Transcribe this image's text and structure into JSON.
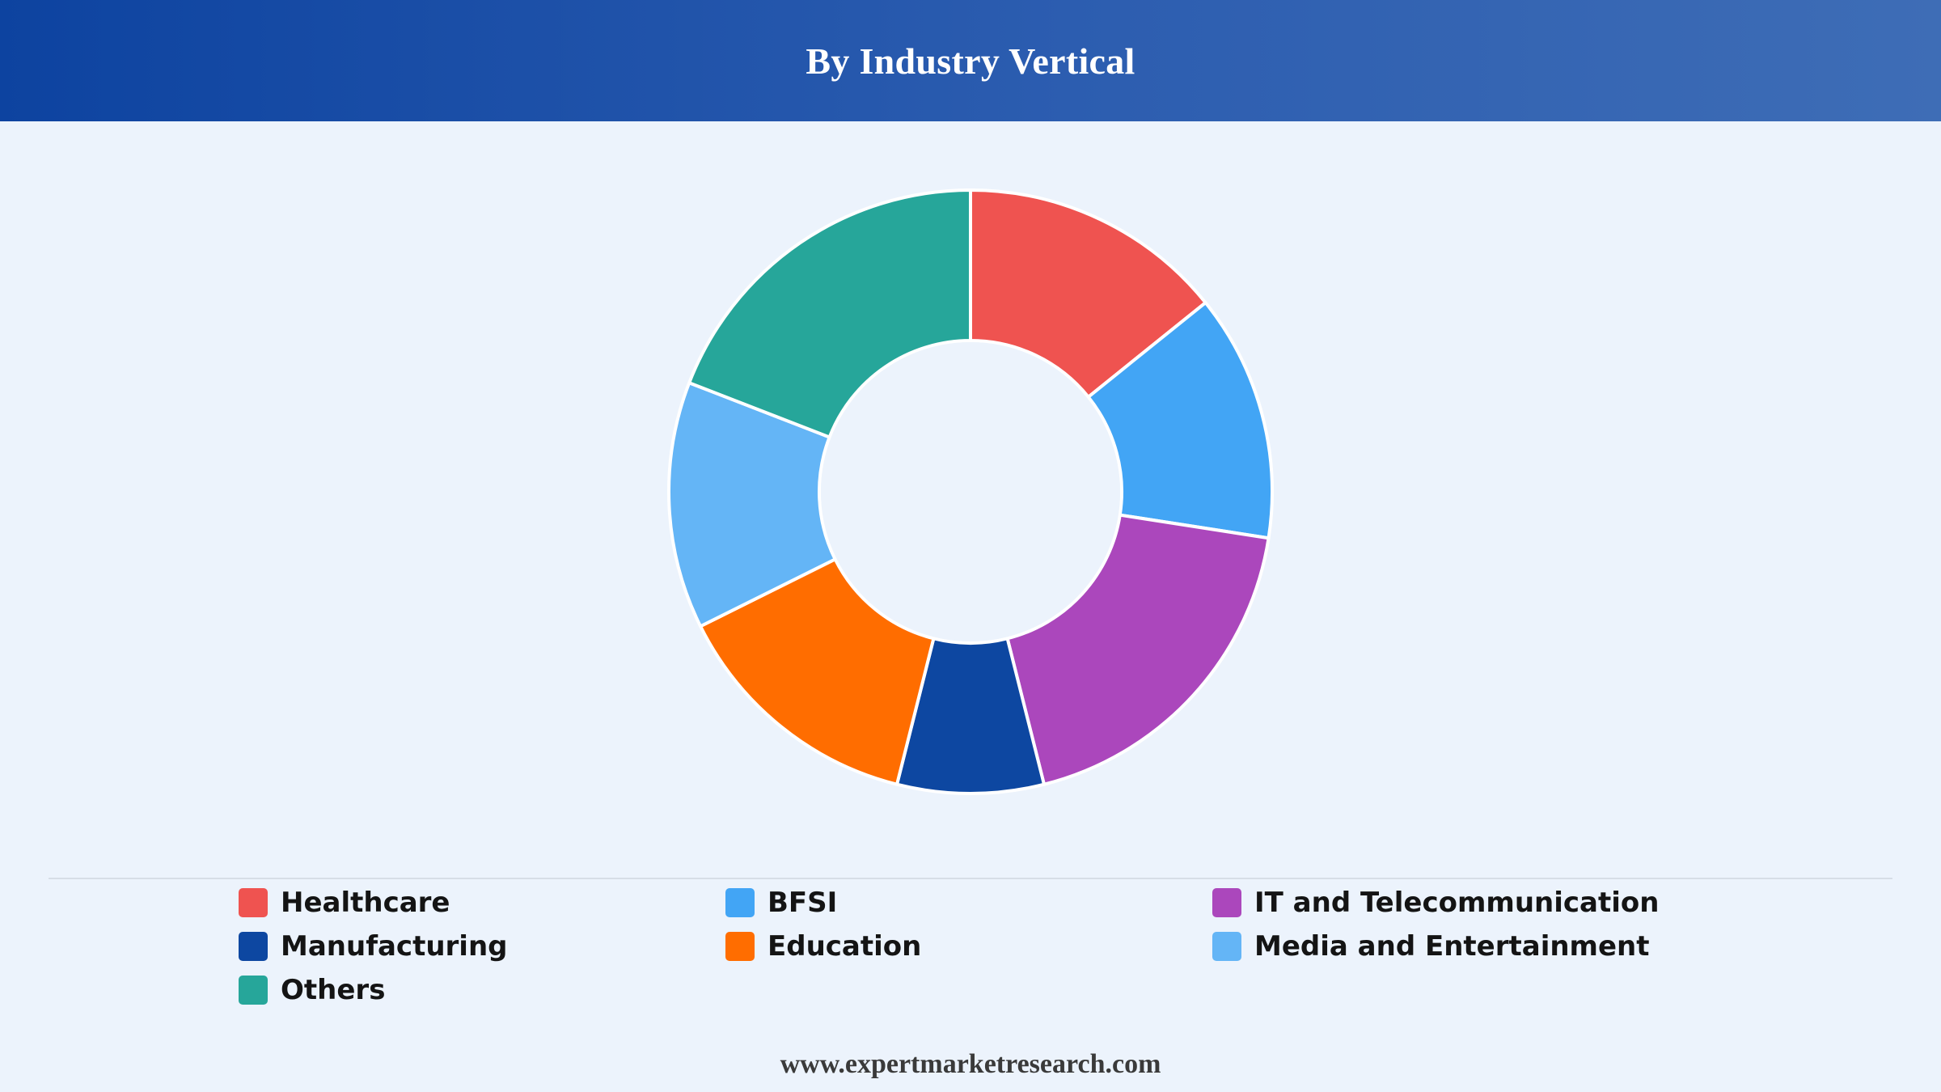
{
  "header": {
    "title": "By Industry Vertical"
  },
  "chart_data": {
    "type": "pie",
    "variant": "donut",
    "title": "By Industry Vertical",
    "categories": [
      "Healthcare",
      "BFSI",
      "IT and Telecommunication",
      "Manufacturing",
      "Education",
      "Media and Entertainment",
      "Others"
    ],
    "values": [
      14.5,
      13.5,
      19,
      8,
      14,
      13.5,
      19.5
    ],
    "colors": [
      "#ef5350",
      "#42a5f5",
      "#ab47bc",
      "#0d47a1",
      "#ff6d00",
      "#64b5f6",
      "#26a69a"
    ],
    "legend_position": "bottom",
    "start_angle_deg": 0,
    "direction": "clockwise"
  },
  "legend": {
    "items": [
      {
        "label": "Healthcare",
        "color": "#ef5350"
      },
      {
        "label": "BFSI",
        "color": "#42a5f5"
      },
      {
        "label": "IT and Telecommunication",
        "color": "#ab47bc"
      },
      {
        "label": "Manufacturing",
        "color": "#0d47a1"
      },
      {
        "label": "Education",
        "color": "#ff6d00"
      },
      {
        "label": "Media and Entertainment",
        "color": "#64b5f6"
      },
      {
        "label": "Others",
        "color": "#26a69a"
      }
    ]
  },
  "footer": {
    "text": "www.expertmarketresearch.com"
  }
}
